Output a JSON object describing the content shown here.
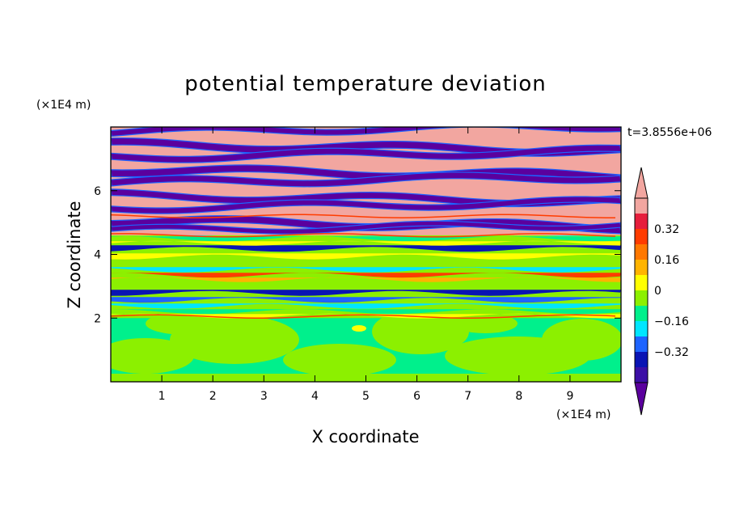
{
  "chart_data": {
    "type": "heatmap",
    "title": "potential temperature deviation",
    "xlabel": "X coordinate",
    "ylabel": "Z coordinate",
    "x_unit_label": "(×1E4 m)",
    "y_unit_label": "(×1E4 m)",
    "time_label": "t=3.8556e+06",
    "xlim": [
      0,
      10
    ],
    "ylim": [
      0,
      8
    ],
    "x_ticks": [
      1,
      2,
      3,
      4,
      5,
      6,
      7,
      8,
      9
    ],
    "y_ticks": [
      2,
      4,
      6
    ],
    "colorbar": {
      "levels": [
        -0.48,
        -0.4,
        -0.32,
        -0.24,
        -0.16,
        -0.08,
        0,
        0.08,
        0.16,
        0.24,
        0.32,
        0.4,
        0.48
      ],
      "tick_labels": [
        "0.32",
        "0.16",
        "0",
        "−0.16",
        "−0.32"
      ],
      "tick_values": [
        0.32,
        0.16,
        0,
        -0.16,
        -0.32
      ],
      "colors": [
        "#5b009e",
        "#3c0fa6",
        "#0a14b4",
        "#1e64ff",
        "#00e6ff",
        "#00f08c",
        "#8cf000",
        "#ffff00",
        "#ffb400",
        "#ff7800",
        "#ff3c00",
        "#e61e3c",
        "#f2a6a0",
        "#f2a6a0"
      ],
      "extend": "both"
    },
    "band_pattern_colors": {
      "top_pink": "#f2a6a0",
      "top_purple": "#5b009e",
      "lower_green": "#00f08c",
      "lower_lime": "#8cf000"
    }
  }
}
